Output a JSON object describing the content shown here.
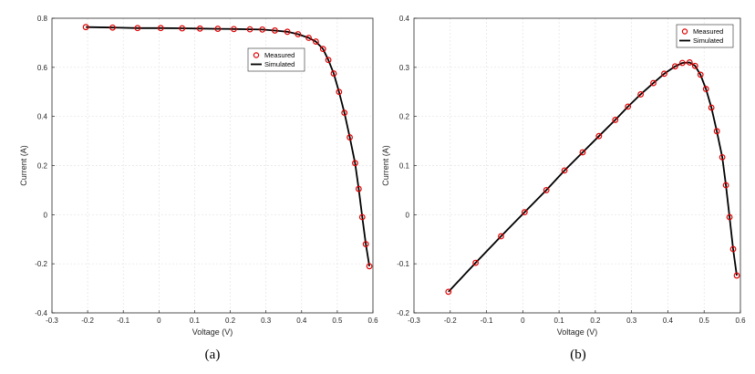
{
  "captions": [
    "(a)",
    "(b)"
  ],
  "chart_data": [
    {
      "type": "line",
      "xlabel": "Voltage (V)",
      "ylabel": "Current (A)",
      "xlim": [
        -0.3,
        0.6
      ],
      "ylim": [
        -0.4,
        0.8
      ],
      "xticks": [
        "-0.3",
        "-0.2",
        "-0.1",
        "0",
        "0.1",
        "0.2",
        "0.3",
        "0.4",
        "0.5",
        "0.6"
      ],
      "yticks": [
        "-0.4",
        "-0.2",
        "0",
        "0.2",
        "0.4",
        "0.6",
        "0.8"
      ],
      "grid": true,
      "legend_position": "top-right",
      "series": [
        {
          "name": "Measured",
          "style": "markers",
          "color": "#e00000",
          "x": [
            -0.205,
            -0.13,
            -0.06,
            0.005,
            0.065,
            0.115,
            0.165,
            0.21,
            0.255,
            0.29,
            0.325,
            0.36,
            0.39,
            0.42,
            0.44,
            0.46,
            0.475,
            0.49,
            0.505,
            0.52,
            0.535,
            0.55,
            0.56,
            0.57,
            0.58,
            0.59
          ],
          "y": [
            0.764,
            0.762,
            0.76,
            0.76,
            0.759,
            0.758,
            0.757,
            0.756,
            0.755,
            0.754,
            0.75,
            0.745,
            0.735,
            0.72,
            0.705,
            0.675,
            0.63,
            0.575,
            0.5,
            0.415,
            0.315,
            0.21,
            0.105,
            -0.01,
            -0.12,
            -0.21
          ]
        },
        {
          "name": "Simulated",
          "style": "line",
          "color": "#000000",
          "x": [
            -0.205,
            -0.13,
            -0.06,
            0.005,
            0.065,
            0.115,
            0.165,
            0.21,
            0.255,
            0.29,
            0.325,
            0.36,
            0.39,
            0.42,
            0.44,
            0.46,
            0.475,
            0.49,
            0.505,
            0.52,
            0.535,
            0.55,
            0.56,
            0.57,
            0.58,
            0.59
          ],
          "y": [
            0.764,
            0.762,
            0.76,
            0.76,
            0.759,
            0.758,
            0.757,
            0.756,
            0.755,
            0.754,
            0.75,
            0.745,
            0.735,
            0.72,
            0.705,
            0.675,
            0.63,
            0.575,
            0.5,
            0.415,
            0.315,
            0.21,
            0.105,
            -0.01,
            -0.12,
            -0.21
          ]
        }
      ]
    },
    {
      "type": "line",
      "xlabel": "Voltage (V)",
      "ylabel": "Current (A)",
      "xlim": [
        -0.3,
        0.6
      ],
      "ylim": [
        -0.2,
        0.4
      ],
      "xticks": [
        "-0.3",
        "-0.2",
        "-0.1",
        "0",
        "0.1",
        "0.2",
        "0.3",
        "0.4",
        "0.5",
        "0.6"
      ],
      "yticks": [
        "-0.2",
        "-0.1",
        "0",
        "0.1",
        "0.2",
        "0.3",
        "0.4"
      ],
      "grid": true,
      "legend_position": "top-right",
      "series": [
        {
          "name": "Measured",
          "style": "markers",
          "color": "#e00000",
          "x": [
            -0.205,
            -0.13,
            -0.06,
            0.005,
            0.065,
            0.115,
            0.165,
            0.21,
            0.255,
            0.29,
            0.325,
            0.36,
            0.39,
            0.42,
            0.44,
            0.46,
            0.475,
            0.49,
            0.505,
            0.52,
            0.535,
            0.55,
            0.56,
            0.57,
            0.58,
            0.59
          ],
          "y": [
            -0.157,
            -0.098,
            -0.044,
            0.005,
            0.05,
            0.09,
            0.127,
            0.16,
            0.193,
            0.22,
            0.245,
            0.268,
            0.287,
            0.302,
            0.309,
            0.31,
            0.303,
            0.285,
            0.256,
            0.218,
            0.17,
            0.117,
            0.06,
            -0.005,
            -0.07,
            -0.124
          ]
        },
        {
          "name": "Simulated",
          "style": "line",
          "color": "#000000",
          "x": [
            -0.205,
            -0.13,
            -0.06,
            0.005,
            0.065,
            0.115,
            0.165,
            0.21,
            0.255,
            0.29,
            0.325,
            0.36,
            0.39,
            0.42,
            0.44,
            0.46,
            0.475,
            0.49,
            0.505,
            0.52,
            0.535,
            0.55,
            0.56,
            0.57,
            0.58,
            0.59
          ],
          "y": [
            -0.157,
            -0.098,
            -0.044,
            0.005,
            0.05,
            0.09,
            0.127,
            0.16,
            0.193,
            0.22,
            0.245,
            0.268,
            0.287,
            0.302,
            0.309,
            0.31,
            0.303,
            0.285,
            0.256,
            0.218,
            0.17,
            0.117,
            0.06,
            -0.005,
            -0.07,
            -0.124
          ]
        }
      ]
    }
  ]
}
